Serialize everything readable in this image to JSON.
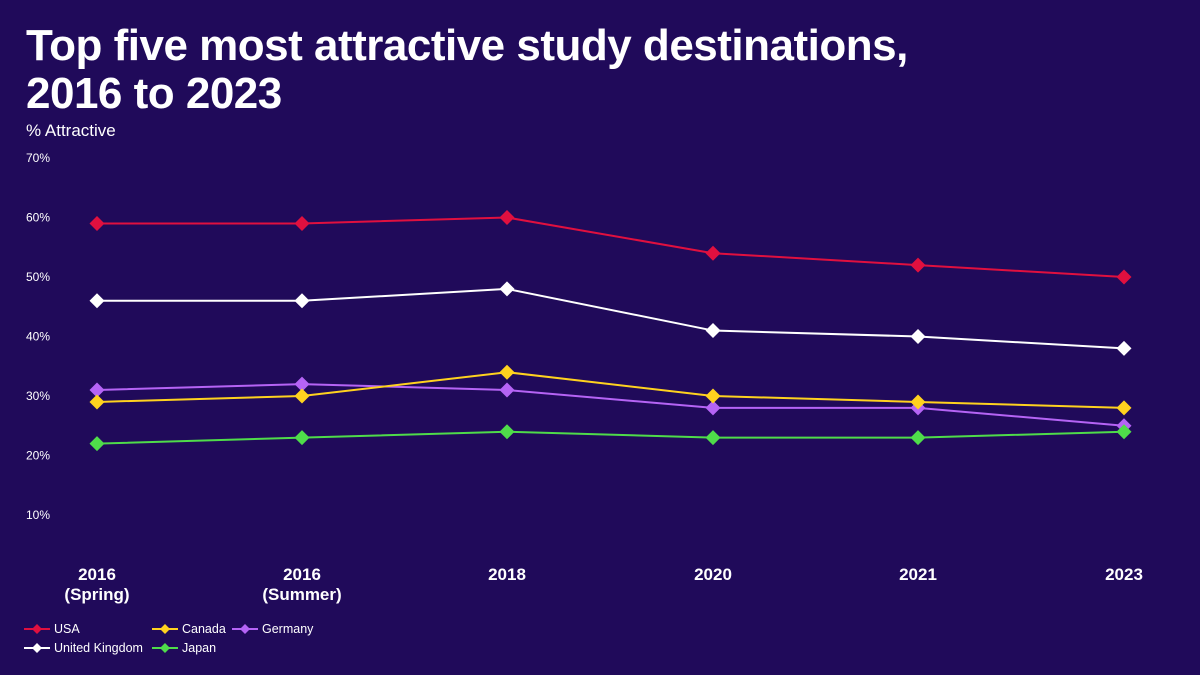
{
  "header": {
    "title_line1": "Top five most attractive study destinations,",
    "title_line2": "2016 to 2023"
  },
  "chart_data": {
    "type": "line",
    "title": "Top five most attractive study destinations, 2016 to 2023",
    "ylabel": "% Attractive",
    "xlabel": "",
    "categories": [
      [
        "2016",
        "(Spring)"
      ],
      [
        "2016",
        "(Summer)"
      ],
      [
        "2018"
      ],
      [
        "2020"
      ],
      [
        "2021"
      ],
      [
        "2023"
      ]
    ],
    "ylim": [
      0,
      70
    ],
    "yticks": [
      10,
      20,
      30,
      40,
      50,
      60,
      70
    ],
    "ytick_labels": [
      "10%",
      "20%",
      "30%",
      "40%",
      "50%",
      "60%",
      "70%"
    ],
    "grid": false,
    "legend_position": "bottom-left",
    "marker": "diamond",
    "series": [
      {
        "name": "USA",
        "color": "#e0103f",
        "values": [
          59,
          59,
          60,
          54,
          52,
          50
        ]
      },
      {
        "name": "United Kingdom",
        "color": "#ffffff",
        "values": [
          46,
          46,
          48,
          41,
          40,
          38
        ]
      },
      {
        "name": "Canada",
        "color": "#ffd21f",
        "values": [
          29,
          30,
          34,
          30,
          29,
          28
        ]
      },
      {
        "name": "Japan",
        "color": "#4fdc4a",
        "values": [
          22,
          23,
          24,
          23,
          23,
          24
        ]
      },
      {
        "name": "Germany",
        "color": "#b564f5",
        "values": [
          31,
          32,
          31,
          28,
          28,
          25
        ]
      }
    ]
  },
  "legend": {
    "order": [
      "USA",
      "United Kingdom",
      "Canada",
      "Japan",
      "Germany"
    ]
  }
}
